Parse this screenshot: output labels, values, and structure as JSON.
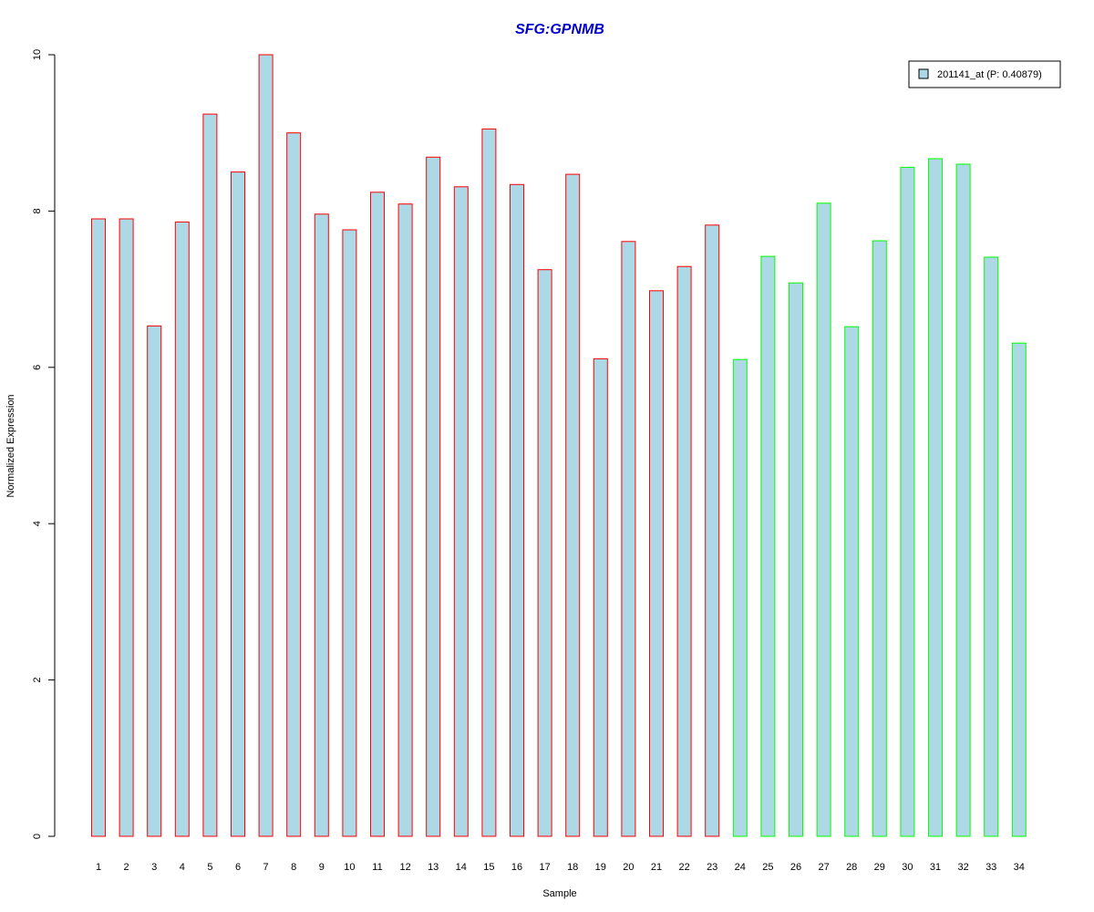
{
  "colors": {
    "bar_fill": "#add8e6",
    "group1_border": "#ff0000",
    "group2_border": "#00ff00",
    "title": "#0000cc",
    "axis": "#000000"
  },
  "chart_data": {
    "type": "bar",
    "title": "SFG:GPNMB",
    "xlabel": "Sample",
    "ylabel": "Normalized Expression",
    "ylim": [
      0,
      10
    ],
    "yticks": [
      "0",
      "2",
      "4",
      "6",
      "8",
      "10"
    ],
    "categories": [
      "1",
      "2",
      "3",
      "4",
      "5",
      "6",
      "7",
      "8",
      "9",
      "10",
      "11",
      "12",
      "13",
      "14",
      "15",
      "16",
      "17",
      "18",
      "19",
      "20",
      "21",
      "22",
      "23",
      "24",
      "25",
      "26",
      "27",
      "28",
      "29",
      "30",
      "31",
      "32",
      "33",
      "34"
    ],
    "series": [
      {
        "name": "201141_at (P: 0.40879)",
        "values": [
          7.9,
          7.9,
          6.53,
          7.86,
          9.24,
          8.5,
          10.0,
          9.0,
          7.96,
          7.76,
          8.24,
          8.09,
          8.69,
          8.31,
          9.05,
          8.34,
          7.25,
          8.47,
          6.11,
          7.61,
          6.98,
          7.29,
          7.82,
          6.1,
          7.42,
          7.08,
          8.1,
          6.52,
          7.62,
          8.56,
          8.67,
          8.6,
          7.41,
          6.31
        ]
      }
    ],
    "groups": [
      {
        "samples": "1-23",
        "border": "red"
      },
      {
        "samples": "24-34",
        "border": "green"
      }
    ],
    "group_of_sample": [
      1,
      1,
      1,
      1,
      1,
      1,
      1,
      1,
      1,
      1,
      1,
      1,
      1,
      1,
      1,
      1,
      1,
      1,
      1,
      1,
      1,
      1,
      1,
      2,
      2,
      2,
      2,
      2,
      2,
      2,
      2,
      2,
      2,
      2
    ],
    "legend_position": "top-right",
    "grid": false
  }
}
